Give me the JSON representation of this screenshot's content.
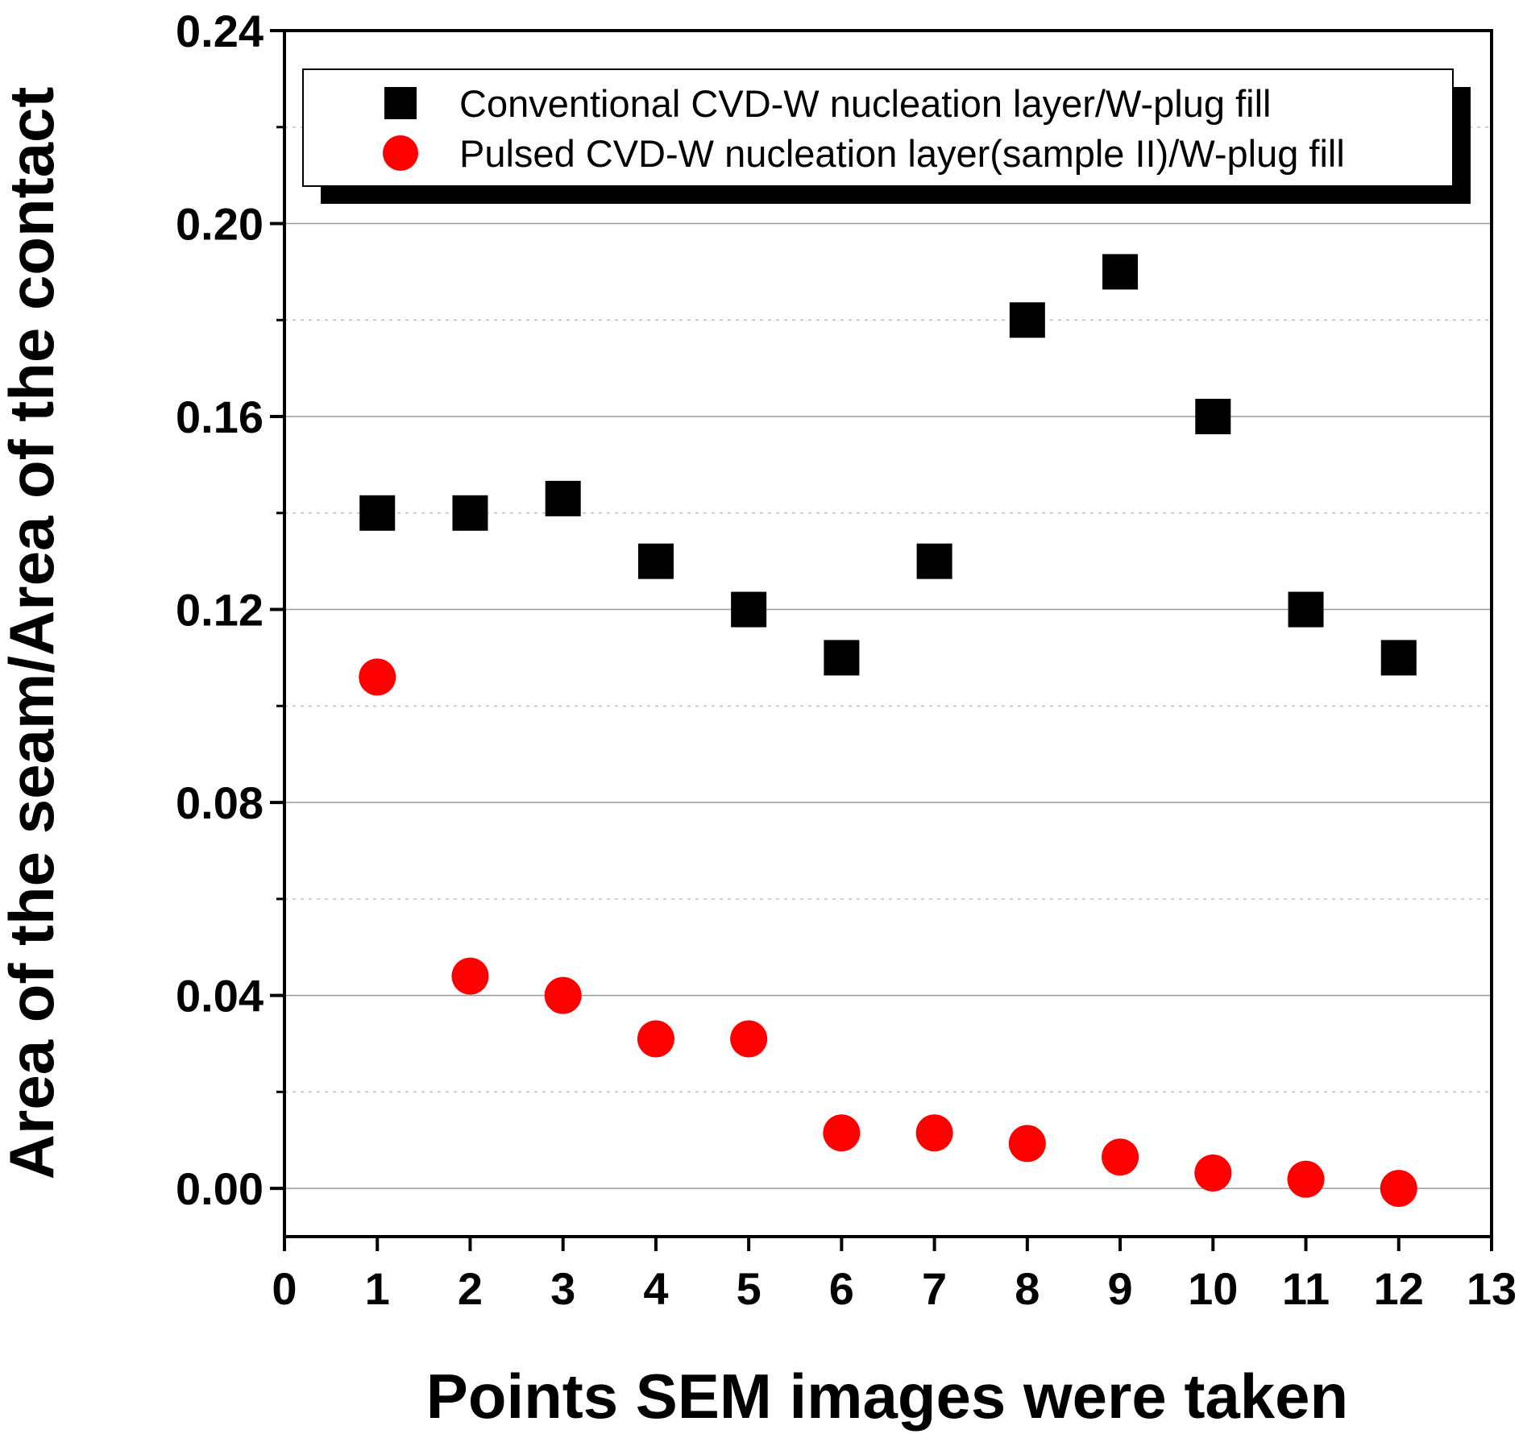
{
  "chart_data": {
    "type": "scatter",
    "title": "",
    "xlabel": "Points SEM images were taken",
    "ylabel": "Area of the seam/Area of the contact",
    "xlim": [
      0,
      13
    ],
    "ylim": [
      -0.01,
      0.24
    ],
    "x_ticks": [
      "0",
      "1",
      "2",
      "3",
      "4",
      "5",
      "6",
      "7",
      "8",
      "9",
      "10",
      "11",
      "12",
      "13"
    ],
    "y_ticks": [
      "0.00",
      "0.04",
      "0.08",
      "0.12",
      "0.16",
      "0.20",
      "0.24"
    ],
    "grid": "horizontal",
    "legend_position": "top",
    "series": [
      {
        "name": "Conventional CVD-W nucleation layer/W-plug fill",
        "marker": "square",
        "color": "#000000",
        "x": [
          1,
          2,
          3,
          4,
          5,
          6,
          7,
          8,
          9,
          10,
          11,
          12
        ],
        "y": [
          0.14,
          0.14,
          0.143,
          0.13,
          0.12,
          0.11,
          0.13,
          0.18,
          0.19,
          0.16,
          0.12,
          0.11
        ]
      },
      {
        "name": "Pulsed CVD-W nucleation layer(sample II)/W-plug fill",
        "marker": "circle",
        "color": "#ff0000",
        "x": [
          1,
          2,
          3,
          4,
          5,
          6,
          7,
          8,
          9,
          10,
          11,
          12
        ],
        "y": [
          0.106,
          0.044,
          0.04,
          0.031,
          0.031,
          0.0115,
          0.0115,
          0.0093,
          0.0065,
          0.0032,
          0.0019,
          0.0
        ]
      }
    ]
  }
}
